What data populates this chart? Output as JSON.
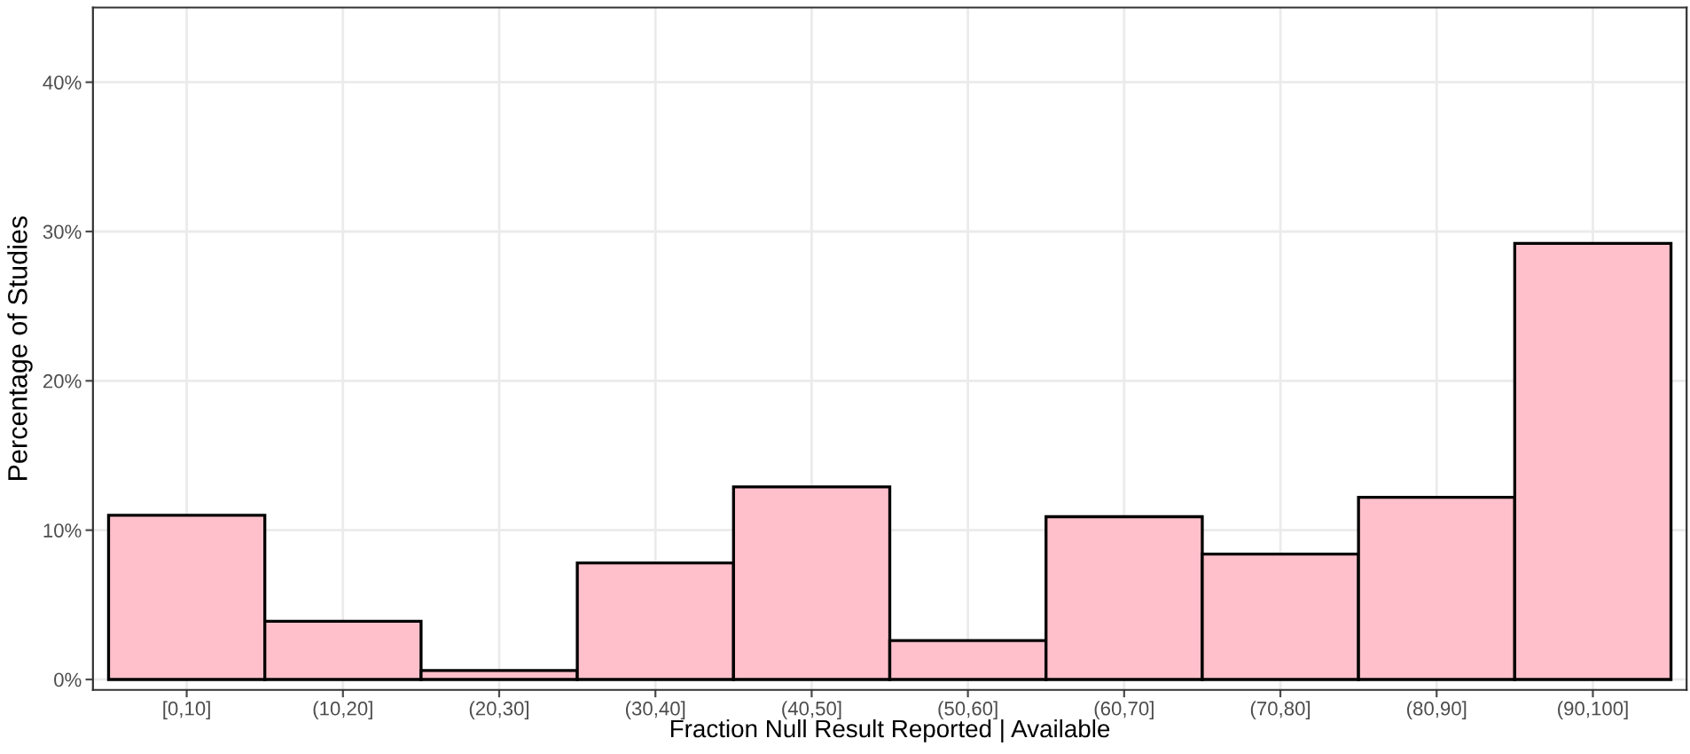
{
  "chart_data": {
    "type": "bar",
    "xlabel": "Fraction Null Result Reported | Available",
    "ylabel": "Percentage of Studies",
    "categories": [
      "[0,10]",
      "(10,20]",
      "(20,30]",
      "(30,40]",
      "(40,50]",
      "(50,60]",
      "(60,70]",
      "(70,80]",
      "(80,90]",
      "(90,100]"
    ],
    "values": [
      11.0,
      3.9,
      0.6,
      7.8,
      12.9,
      2.6,
      10.9,
      8.4,
      12.2,
      29.2
    ],
    "color": "#ffc0cb",
    "ylim": [
      -0.7,
      45
    ],
    "yticks": [
      {
        "value": 0,
        "label": "0%"
      },
      {
        "value": 10,
        "label": "10%"
      },
      {
        "value": 20,
        "label": "20%"
      },
      {
        "value": 30,
        "label": "30%"
      },
      {
        "value": 40,
        "label": "40%"
      }
    ],
    "grid": true,
    "legend": false
  }
}
